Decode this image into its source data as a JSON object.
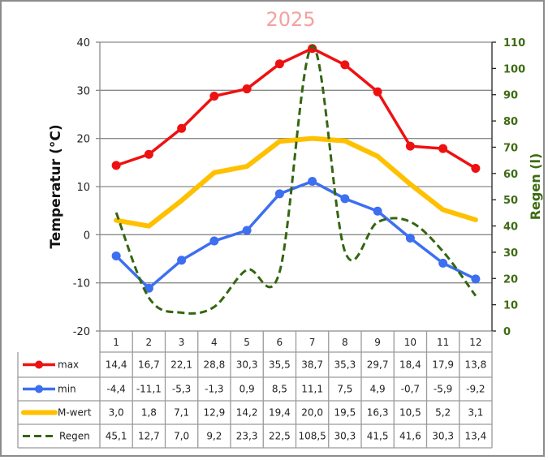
{
  "chart_data": {
    "type": "line",
    "title": "2025",
    "xlabel": "",
    "ylabel": "Temperatur (°C)",
    "y2label": "Regen (l)",
    "categories": [
      "1",
      "2",
      "3",
      "4",
      "5",
      "6",
      "7",
      "8",
      "9",
      "10",
      "11",
      "12"
    ],
    "ylim": [
      -20,
      40
    ],
    "y2lim": [
      0,
      110
    ],
    "yticks": [
      "40",
      "30",
      "20",
      "10",
      "0",
      "-10",
      "-20"
    ],
    "y2ticks": [
      "110",
      "100",
      "90",
      "80",
      "70",
      "60",
      "50",
      "40",
      "30",
      "20",
      "10",
      "0"
    ],
    "grid": true,
    "legend": "bottom-data-table",
    "series": [
      {
        "name": "max",
        "axis": "left",
        "color": "#ee1111",
        "style": "line-markers",
        "values": [
          14.4,
          16.7,
          22.1,
          28.8,
          30.3,
          35.5,
          38.7,
          35.3,
          29.7,
          18.4,
          17.9,
          13.8
        ],
        "labels": [
          "14,4",
          "16,7",
          "22,1",
          "28,8",
          "30,3",
          "35,5",
          "38,7",
          "35,3",
          "29,7",
          "18,4",
          "17,9",
          "13,8"
        ]
      },
      {
        "name": "min",
        "axis": "left",
        "color": "#3d6ff0",
        "style": "line-markers",
        "values": [
          -4.4,
          -11.1,
          -5.3,
          -1.3,
          0.9,
          8.5,
          11.1,
          7.5,
          4.9,
          -0.7,
          -5.9,
          -9.2
        ],
        "labels": [
          "-4,4",
          "-11,1",
          "-5,3",
          "-1,3",
          "0,9",
          "8,5",
          "11,1",
          "7,5",
          "4,9",
          "-0,7",
          "-5,9",
          "-9,2"
        ]
      },
      {
        "name": "M-wert",
        "axis": "left",
        "color": "#ffc000",
        "style": "thick-line",
        "values": [
          3.0,
          1.8,
          7.1,
          12.9,
          14.2,
          19.4,
          20.0,
          19.5,
          16.3,
          10.5,
          5.2,
          3.1
        ],
        "labels": [
          "3,0",
          "1,8",
          "7,1",
          "12,9",
          "14,2",
          "19,4",
          "20,0",
          "19,5",
          "16,3",
          "10,5",
          "5,2",
          "3,1"
        ]
      },
      {
        "name": "Regen",
        "axis": "right",
        "color": "#336611",
        "style": "dashed-smooth",
        "values": [
          45.1,
          12.7,
          7.0,
          9.2,
          23.3,
          22.5,
          108.5,
          30.3,
          41.5,
          41.6,
          30.3,
          13.4
        ],
        "labels": [
          "45,1",
          "12,7",
          "7,0",
          "9,2",
          "23,3",
          "22,5",
          "108,5",
          "30,3",
          "41,5",
          "41,6",
          "30,3",
          "13,4"
        ]
      }
    ]
  }
}
